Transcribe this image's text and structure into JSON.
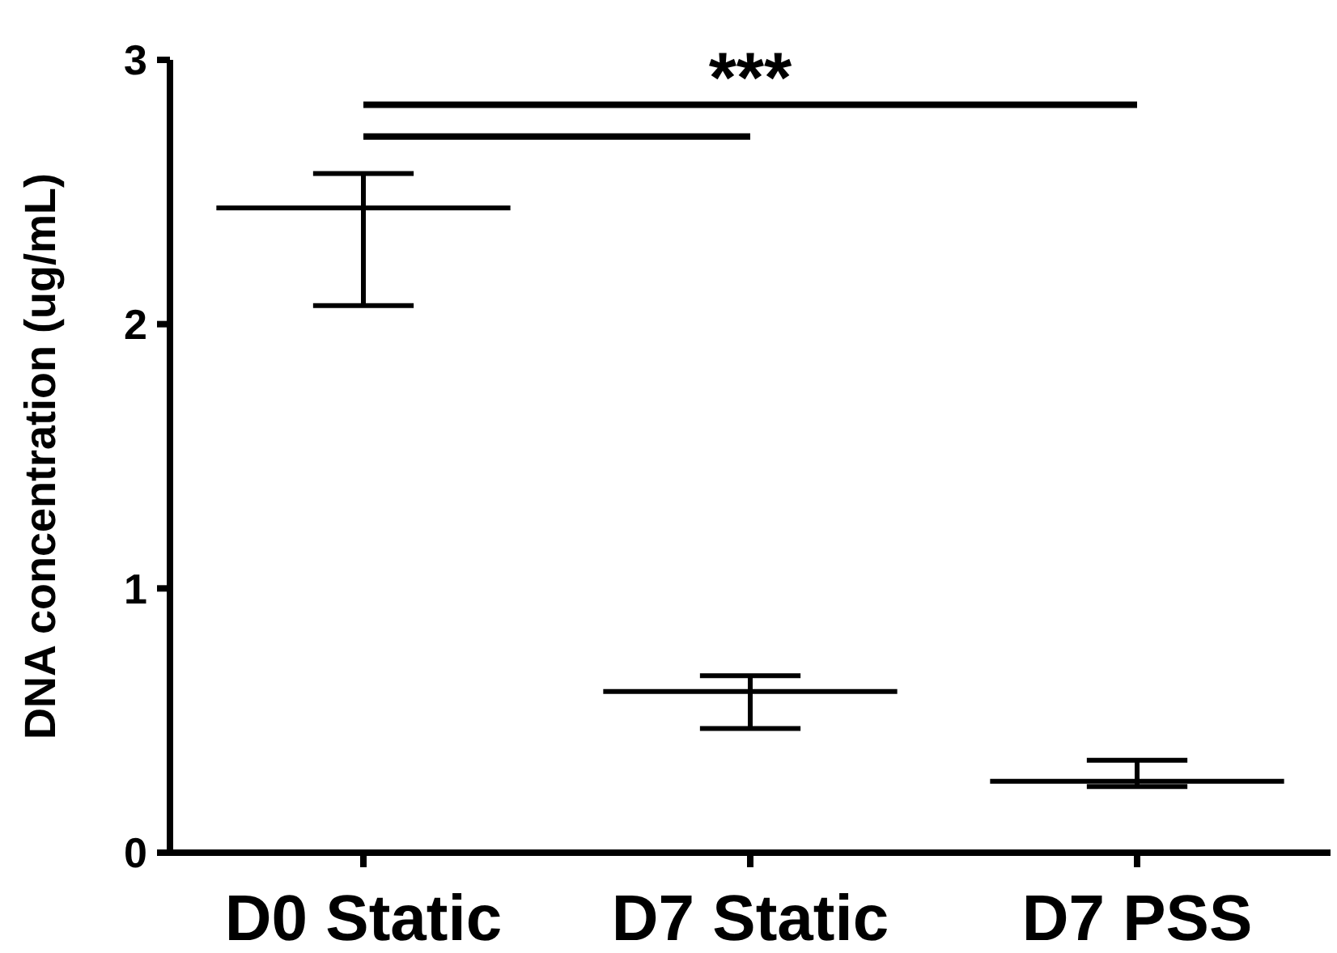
{
  "chart_data": {
    "type": "box",
    "ylabel": "DNA concentration (ug/mL)",
    "categories": [
      "D0 Static",
      "D7 Static",
      "D7 PSS"
    ],
    "boxes": [
      {
        "low": 2.07,
        "q1": 2.44,
        "median": 2.44,
        "q3": 2.44,
        "high": 2.57
      },
      {
        "low": 0.47,
        "q1": 0.61,
        "median": 0.61,
        "q3": 0.61,
        "high": 0.67
      },
      {
        "low": 0.25,
        "q1": 0.27,
        "median": 0.27,
        "q3": 0.27,
        "high": 0.35
      }
    ],
    "color": "#000000",
    "ylim": [
      0,
      3
    ],
    "yticks": [
      0,
      1,
      2,
      3
    ],
    "grid": false,
    "annotations": [
      "***"
    ]
  }
}
